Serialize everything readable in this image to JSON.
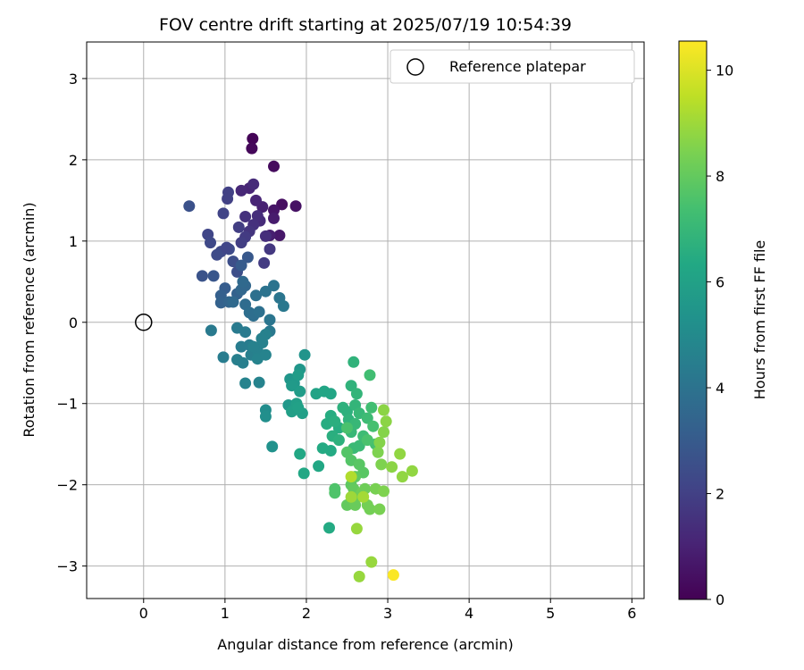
{
  "chart_data": {
    "type": "scatter",
    "title": "FOV centre drift starting at 2025/07/19 10:54:39",
    "xlabel": "Angular distance from reference (arcmin)",
    "ylabel": "Rotation from reference (arcmin)",
    "colorbar_label": "Hours from first FF file",
    "colormap": "viridis",
    "xlim": [
      -0.7,
      6.15
    ],
    "ylim": [
      -3.4,
      3.45
    ],
    "clim": [
      0,
      10.55
    ],
    "xticks": [
      0,
      1,
      2,
      3,
      4,
      5,
      6
    ],
    "yticks": [
      -3,
      -2,
      -1,
      0,
      1,
      2,
      3
    ],
    "cticks": [
      0,
      2,
      4,
      6,
      8,
      10
    ],
    "grid": true,
    "legend": {
      "placement": "top-right",
      "entries": [
        {
          "label": "Reference platepar",
          "marker": "open-circle"
        }
      ]
    },
    "reference": {
      "x": 0,
      "y": 0
    },
    "points": [
      [
        1.34,
        2.26,
        0.1
      ],
      [
        1.33,
        2.14,
        0.2
      ],
      [
        1.6,
        1.92,
        0.3
      ],
      [
        1.7,
        1.45,
        0.4
      ],
      [
        1.87,
        1.43,
        0.5
      ],
      [
        1.6,
        1.38,
        0.6
      ],
      [
        1.67,
        1.07,
        0.7
      ],
      [
        1.6,
        1.28,
        0.8
      ],
      [
        1.55,
        1.07,
        0.9
      ],
      [
        1.46,
        1.42,
        1.0
      ],
      [
        1.38,
        1.5,
        1.1
      ],
      [
        1.3,
        1.65,
        1.1
      ],
      [
        1.2,
        1.62,
        1.2
      ],
      [
        1.43,
        1.25,
        1.3
      ],
      [
        1.5,
        1.06,
        1.4
      ],
      [
        1.35,
        1.7,
        1.3
      ],
      [
        1.4,
        1.31,
        1.4
      ],
      [
        1.35,
        1.2,
        1.5
      ],
      [
        1.25,
        1.3,
        1.5
      ],
      [
        1.3,
        1.12,
        1.6
      ],
      [
        1.55,
        0.9,
        1.7
      ],
      [
        1.48,
        0.73,
        1.8
      ],
      [
        1.25,
        1.05,
        1.8
      ],
      [
        1.2,
        0.98,
        1.9
      ],
      [
        1.17,
        1.17,
        1.9
      ],
      [
        1.04,
        1.6,
        2.0
      ],
      [
        1.03,
        1.52,
        2.0
      ],
      [
        0.98,
        1.34,
        2.1
      ],
      [
        0.79,
        1.08,
        2.2
      ],
      [
        0.82,
        0.98,
        2.3
      ],
      [
        0.95,
        0.87,
        2.3
      ],
      [
        0.9,
        0.83,
        2.4
      ],
      [
        1.05,
        0.9,
        2.4
      ],
      [
        1.1,
        0.75,
        2.5
      ],
      [
        1.15,
        0.62,
        2.5
      ],
      [
        1.02,
        0.92,
        2.2
      ],
      [
        0.56,
        1.43,
        2.6
      ],
      [
        0.72,
        0.57,
        2.7
      ],
      [
        0.86,
        0.57,
        2.8
      ],
      [
        1.28,
        0.8,
        2.9
      ],
      [
        1.2,
        0.7,
        3.0
      ],
      [
        1.0,
        0.42,
        3.1
      ],
      [
        0.95,
        0.33,
        3.2
      ],
      [
        1.15,
        0.35,
        3.3
      ],
      [
        0.95,
        0.24,
        3.3
      ],
      [
        1.05,
        0.25,
        3.4
      ],
      [
        1.2,
        0.4,
        3.5
      ],
      [
        1.25,
        0.45,
        3.5
      ],
      [
        1.1,
        0.25,
        3.6
      ],
      [
        1.22,
        0.5,
        3.6
      ],
      [
        1.25,
        0.22,
        3.7
      ],
      [
        1.3,
        0.12,
        3.8
      ],
      [
        1.35,
        0.08,
        3.8
      ],
      [
        1.42,
        0.13,
        3.9
      ],
      [
        1.38,
        0.33,
        3.9
      ],
      [
        1.5,
        0.38,
        4.0
      ],
      [
        1.6,
        0.45,
        4.0
      ],
      [
        1.67,
        0.3,
        4.1
      ],
      [
        1.72,
        0.2,
        4.2
      ],
      [
        1.55,
        0.03,
        4.1
      ],
      [
        1.55,
        -0.11,
        4.2
      ],
      [
        1.15,
        -0.07,
        4.3
      ],
      [
        0.83,
        -0.1,
        4.3
      ],
      [
        1.25,
        -0.12,
        4.3
      ],
      [
        1.2,
        -0.3,
        4.4
      ],
      [
        1.3,
        -0.28,
        4.4
      ],
      [
        0.98,
        -0.43,
        4.4
      ],
      [
        1.15,
        -0.46,
        4.5
      ],
      [
        1.22,
        -0.5,
        4.5
      ],
      [
        1.32,
        -0.4,
        4.5
      ],
      [
        1.4,
        -0.35,
        4.6
      ],
      [
        1.46,
        -0.25,
        4.6
      ],
      [
        1.5,
        -0.15,
        4.6
      ],
      [
        1.4,
        -0.45,
        4.7
      ],
      [
        1.25,
        -0.75,
        4.7
      ],
      [
        1.42,
        -0.74,
        4.7
      ],
      [
        1.5,
        -0.4,
        4.7
      ],
      [
        1.45,
        -0.2,
        4.6
      ],
      [
        1.35,
        -0.3,
        4.6
      ],
      [
        1.5,
        -1.08,
        5.1
      ],
      [
        1.5,
        -1.16,
        5.2
      ],
      [
        1.58,
        -1.53,
        5.3
      ],
      [
        1.98,
        -0.4,
        5.4
      ],
      [
        1.92,
        -0.58,
        5.5
      ],
      [
        1.8,
        -0.7,
        5.5
      ],
      [
        1.85,
        -0.75,
        5.6
      ],
      [
        1.78,
        -1.02,
        5.6
      ],
      [
        1.85,
        -1.05,
        5.7
      ],
      [
        1.82,
        -0.78,
        5.7
      ],
      [
        1.9,
        -0.65,
        5.8
      ],
      [
        1.92,
        -0.85,
        5.8
      ],
      [
        1.88,
        -1.0,
        5.9
      ],
      [
        1.95,
        -1.12,
        5.9
      ],
      [
        1.82,
        -1.1,
        5.9
      ],
      [
        1.9,
        -1.05,
        6.0
      ],
      [
        2.12,
        -0.88,
        6.1
      ],
      [
        2.22,
        -0.85,
        6.2
      ],
      [
        2.3,
        -0.88,
        6.2
      ],
      [
        1.92,
        -1.62,
        6.3
      ],
      [
        1.97,
        -1.86,
        6.3
      ],
      [
        2.15,
        -1.77,
        6.3
      ],
      [
        2.2,
        -1.55,
        6.4
      ],
      [
        2.28,
        -2.53,
        6.4
      ],
      [
        2.3,
        -1.58,
        6.4
      ],
      [
        2.25,
        -1.25,
        6.5
      ],
      [
        2.3,
        -1.15,
        6.5
      ],
      [
        2.4,
        -1.3,
        6.5
      ],
      [
        2.32,
        -1.4,
        6.6
      ],
      [
        2.35,
        -1.22,
        6.6
      ],
      [
        2.4,
        -1.45,
        6.7
      ],
      [
        2.45,
        -1.05,
        6.7
      ],
      [
        2.5,
        -1.1,
        6.7
      ],
      [
        2.52,
        -1.2,
        6.8
      ],
      [
        2.55,
        -0.78,
        6.8
      ],
      [
        2.58,
        -0.49,
        6.8
      ],
      [
        2.62,
        -0.88,
        6.9
      ],
      [
        2.6,
        -1.02,
        6.9
      ],
      [
        2.65,
        -1.12,
        7.0
      ],
      [
        2.55,
        -1.35,
        7.0
      ],
      [
        2.6,
        -1.25,
        7.0
      ],
      [
        2.58,
        -1.55,
        7.1
      ],
      [
        2.65,
        -1.52,
        7.1
      ],
      [
        2.7,
        -1.4,
        7.2
      ],
      [
        2.75,
        -1.18,
        7.2
      ],
      [
        2.8,
        -1.05,
        7.3
      ],
      [
        2.78,
        -0.65,
        7.3
      ],
      [
        2.82,
        -1.28,
        7.4
      ],
      [
        2.85,
        -1.5,
        7.4
      ],
      [
        2.75,
        -1.45,
        7.5
      ],
      [
        2.5,
        -1.3,
        7.5
      ],
      [
        2.35,
        -2.05,
        7.6
      ],
      [
        2.35,
        -2.1,
        7.6
      ],
      [
        2.5,
        -1.6,
        7.7
      ],
      [
        2.55,
        -1.7,
        7.7
      ],
      [
        2.65,
        -1.75,
        7.8
      ],
      [
        2.7,
        -1.85,
        7.8
      ],
      [
        2.6,
        -1.9,
        7.9
      ],
      [
        2.55,
        -2.0,
        7.9
      ],
      [
        2.5,
        -2.25,
        8.0
      ],
      [
        2.58,
        -2.05,
        8.0
      ],
      [
        2.62,
        -2.15,
        8.1
      ],
      [
        2.6,
        -2.25,
        8.1
      ],
      [
        2.68,
        -2.1,
        8.2
      ],
      [
        2.72,
        -2.05,
        8.2
      ],
      [
        2.75,
        -2.25,
        8.3
      ],
      [
        2.78,
        -2.3,
        8.3
      ],
      [
        2.85,
        -2.05,
        8.4
      ],
      [
        2.9,
        -2.3,
        8.4
      ],
      [
        2.95,
        -2.08,
        8.5
      ],
      [
        2.92,
        -1.75,
        8.5
      ],
      [
        2.88,
        -1.6,
        8.5
      ],
      [
        2.9,
        -1.48,
        8.6
      ],
      [
        2.95,
        -1.35,
        8.6
      ],
      [
        2.98,
        -1.22,
        8.7
      ],
      [
        2.95,
        -1.08,
        8.7
      ],
      [
        3.05,
        -1.78,
        8.7
      ],
      [
        3.15,
        -1.62,
        8.8
      ],
      [
        3.18,
        -1.9,
        8.8
      ],
      [
        3.3,
        -1.83,
        8.8
      ],
      [
        2.8,
        -2.95,
        8.9
      ],
      [
        2.62,
        -2.54,
        8.9
      ],
      [
        2.65,
        -3.13,
        8.9
      ],
      [
        2.55,
        -2.15,
        9.0
      ],
      [
        2.7,
        -2.15,
        9.1
      ],
      [
        2.55,
        -1.9,
        9.3
      ],
      [
        3.07,
        -3.11,
        10.5
      ]
    ]
  }
}
